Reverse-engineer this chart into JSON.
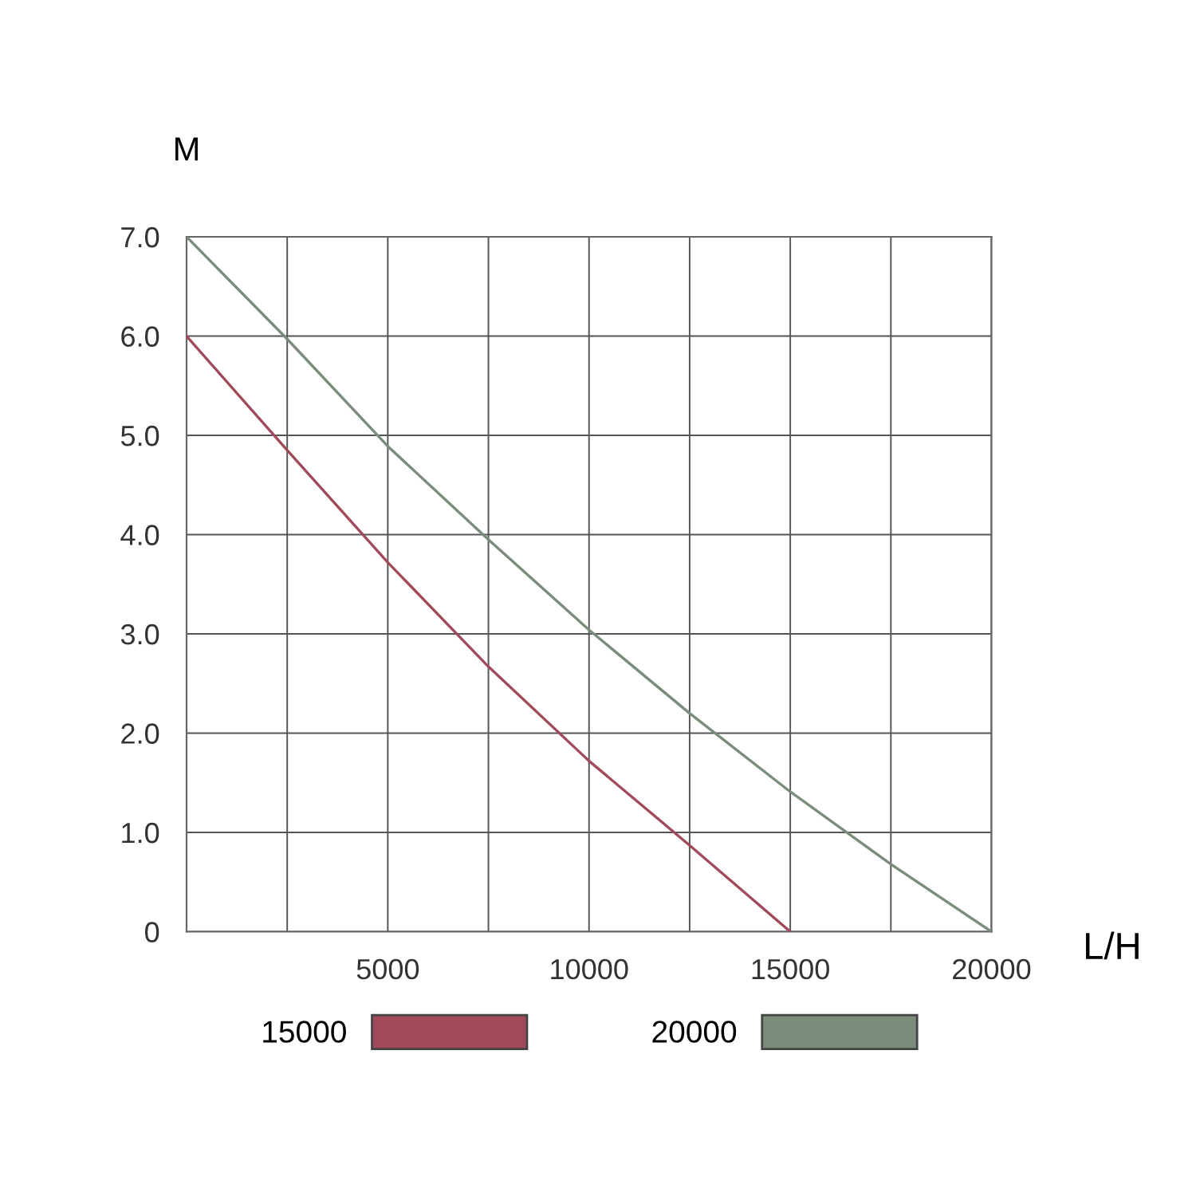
{
  "chart_data": {
    "type": "line",
    "xlabel": "L/H",
    "ylabel": "M",
    "x": [
      0,
      2500,
      5000,
      7500,
      10000,
      12500,
      15000,
      17500,
      20000
    ],
    "series": [
      {
        "name": "15000",
        "color": "#a04a5a",
        "values": [
          6.0,
          4.85,
          3.72,
          2.67,
          1.72,
          0.87,
          0,
          null,
          null
        ]
      },
      {
        "name": "20000",
        "color": "#7a8c7a",
        "values": [
          7.0,
          5.97,
          4.89,
          3.95,
          3.04,
          2.2,
          1.41,
          0.68,
          0
        ]
      }
    ],
    "xlim": [
      0,
      20000
    ],
    "ylim": [
      0,
      7
    ],
    "xticks": [
      {
        "value": 0,
        "label": null
      },
      {
        "value": 2500,
        "label": null
      },
      5000,
      {
        "value": 7500,
        "label": null
      },
      10000,
      {
        "value": 12500,
        "label": null
      },
      15000,
      {
        "value": 17500,
        "label": null
      },
      20000
    ],
    "yticks": [
      0,
      {
        "value": 1,
        "label": "1.0"
      },
      {
        "value": 2,
        "label": "2.0"
      },
      {
        "value": 3,
        "label": "3.0"
      },
      {
        "value": 4,
        "label": "4.0"
      },
      {
        "value": 5,
        "label": "5.0"
      },
      {
        "value": 6,
        "label": "6.0"
      },
      {
        "value": 7,
        "label": "7.0"
      }
    ],
    "grid": true,
    "legend": "bottom",
    "marker": "none",
    "line_style": "solid"
  }
}
